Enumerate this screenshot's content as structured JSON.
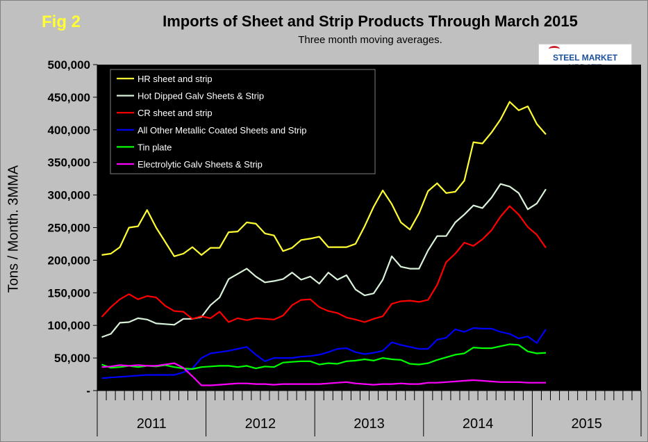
{
  "fig_label": "Fig 2",
  "logo_text": "STEEL MARKET UPDATE",
  "chart_data": {
    "type": "line",
    "title": "Imports of Sheet and Strip Products Through March 2015",
    "subtitle": "Three month moving averages.",
    "xlabel": "",
    "ylabel": "Tons / Month. 3MMA",
    "ylim": [
      0,
      500000
    ],
    "yticks": [
      {
        "value": 0,
        "label": "-"
      },
      {
        "value": 50000,
        "label": "50,000"
      },
      {
        "value": 100000,
        "label": "100,000"
      },
      {
        "value": 150000,
        "label": "150,000"
      },
      {
        "value": 200000,
        "label": "200,000"
      },
      {
        "value": 250000,
        "label": "250,000"
      },
      {
        "value": 300000,
        "label": "300,000"
      },
      {
        "value": 350000,
        "label": "350,000"
      },
      {
        "value": 400000,
        "label": "400,000"
      },
      {
        "value": 450000,
        "label": "450,000"
      },
      {
        "value": 500000,
        "label": "500,000"
      }
    ],
    "years": [
      "2011",
      "2012",
      "2013",
      "2014",
      "2015"
    ],
    "months_per_year": 12,
    "total_month_slots": 60,
    "grid": false,
    "legend_position": "top-left",
    "background": "#000000",
    "series": [
      {
        "name": "HR sheet and strip",
        "color": "#ffff33",
        "values": [
          208000,
          210000,
          220000,
          250000,
          252000,
          277000,
          250000,
          228000,
          206000,
          210000,
          220000,
          208000,
          219000,
          219000,
          243000,
          244000,
          258000,
          256000,
          241000,
          238000,
          214000,
          219000,
          231000,
          233000,
          236000,
          220000,
          220000,
          220000,
          225000,
          252000,
          282000,
          307000,
          286000,
          258000,
          247000,
          272000,
          306000,
          318000,
          303000,
          305000,
          322000,
          381000,
          379000,
          396000,
          416000,
          443000,
          430000,
          436000,
          409000,
          393000
        ]
      },
      {
        "name": "Hot Dipped Galv Sheets & Strip",
        "color": "#d9f2d9",
        "values": [
          82000,
          87000,
          104000,
          105000,
          111000,
          109000,
          103000,
          102000,
          101000,
          110000,
          110000,
          113000,
          131000,
          143000,
          171000,
          179000,
          187000,
          175000,
          166000,
          168000,
          171000,
          181000,
          170000,
          175000,
          164000,
          181000,
          170000,
          177000,
          155000,
          146000,
          149000,
          170000,
          206000,
          190000,
          187000,
          187000,
          215000,
          237000,
          237000,
          258000,
          270000,
          284000,
          280000,
          296000,
          317000,
          313000,
          303000,
          278000,
          287000,
          309000
        ]
      },
      {
        "name": "CR sheet and strip",
        "color": "#ff0000",
        "values": [
          113000,
          128000,
          140000,
          148000,
          140000,
          145000,
          143000,
          130000,
          122000,
          121000,
          110000,
          114000,
          111000,
          121000,
          105000,
          111000,
          108000,
          111000,
          110000,
          109000,
          115000,
          131000,
          139000,
          140000,
          128000,
          122000,
          119000,
          112000,
          109000,
          105000,
          110000,
          114000,
          133000,
          137000,
          138000,
          136000,
          139000,
          162000,
          197000,
          210000,
          227000,
          222000,
          232000,
          246000,
          267000,
          283000,
          270000,
          251000,
          239000,
          219000
        ]
      },
      {
        "name": "All Other Metallic Coated Sheets and Strip",
        "color": "#0000ff",
        "values": [
          19000,
          20000,
          21000,
          22000,
          23000,
          24000,
          24000,
          24000,
          24000,
          28000,
          34000,
          50000,
          57000,
          59000,
          61000,
          64000,
          67000,
          55000,
          45000,
          50000,
          50000,
          50000,
          52000,
          53000,
          55000,
          59000,
          64000,
          65000,
          59000,
          56000,
          58000,
          61000,
          74000,
          70000,
          67000,
          64000,
          64000,
          78000,
          81000,
          94000,
          90000,
          96000,
          95000,
          95000,
          90000,
          87000,
          80000,
          83000,
          73000,
          94000
        ]
      },
      {
        "name": "Tin plate",
        "color": "#00ff00",
        "values": [
          40000,
          35000,
          36000,
          38000,
          36000,
          38000,
          37000,
          39000,
          36000,
          34000,
          33000,
          36000,
          37000,
          38000,
          38000,
          36000,
          38000,
          34000,
          37000,
          36000,
          43000,
          44000,
          45000,
          45000,
          40000,
          42000,
          41000,
          45000,
          46000,
          48000,
          46000,
          50000,
          48000,
          47000,
          41000,
          40000,
          42000,
          47000,
          51000,
          55000,
          57000,
          66000,
          65000,
          65000,
          68000,
          71000,
          70000,
          60000,
          57000,
          58000
        ]
      },
      {
        "name": "Electrolytic Galv Sheets & Strip",
        "color": "#ff00ff",
        "values": [
          36000,
          37000,
          39000,
          38000,
          39000,
          38000,
          38000,
          40000,
          42000,
          35000,
          22000,
          8000,
          8000,
          9000,
          10000,
          11000,
          11000,
          10000,
          10000,
          9000,
          10000,
          10000,
          10000,
          10000,
          10000,
          11000,
          12000,
          13000,
          11000,
          10000,
          9000,
          10000,
          10000,
          11000,
          10000,
          10000,
          12000,
          12000,
          13000,
          14000,
          15000,
          16000,
          15000,
          14000,
          13000,
          13000,
          13000,
          12000,
          12000,
          12000
        ]
      }
    ]
  }
}
